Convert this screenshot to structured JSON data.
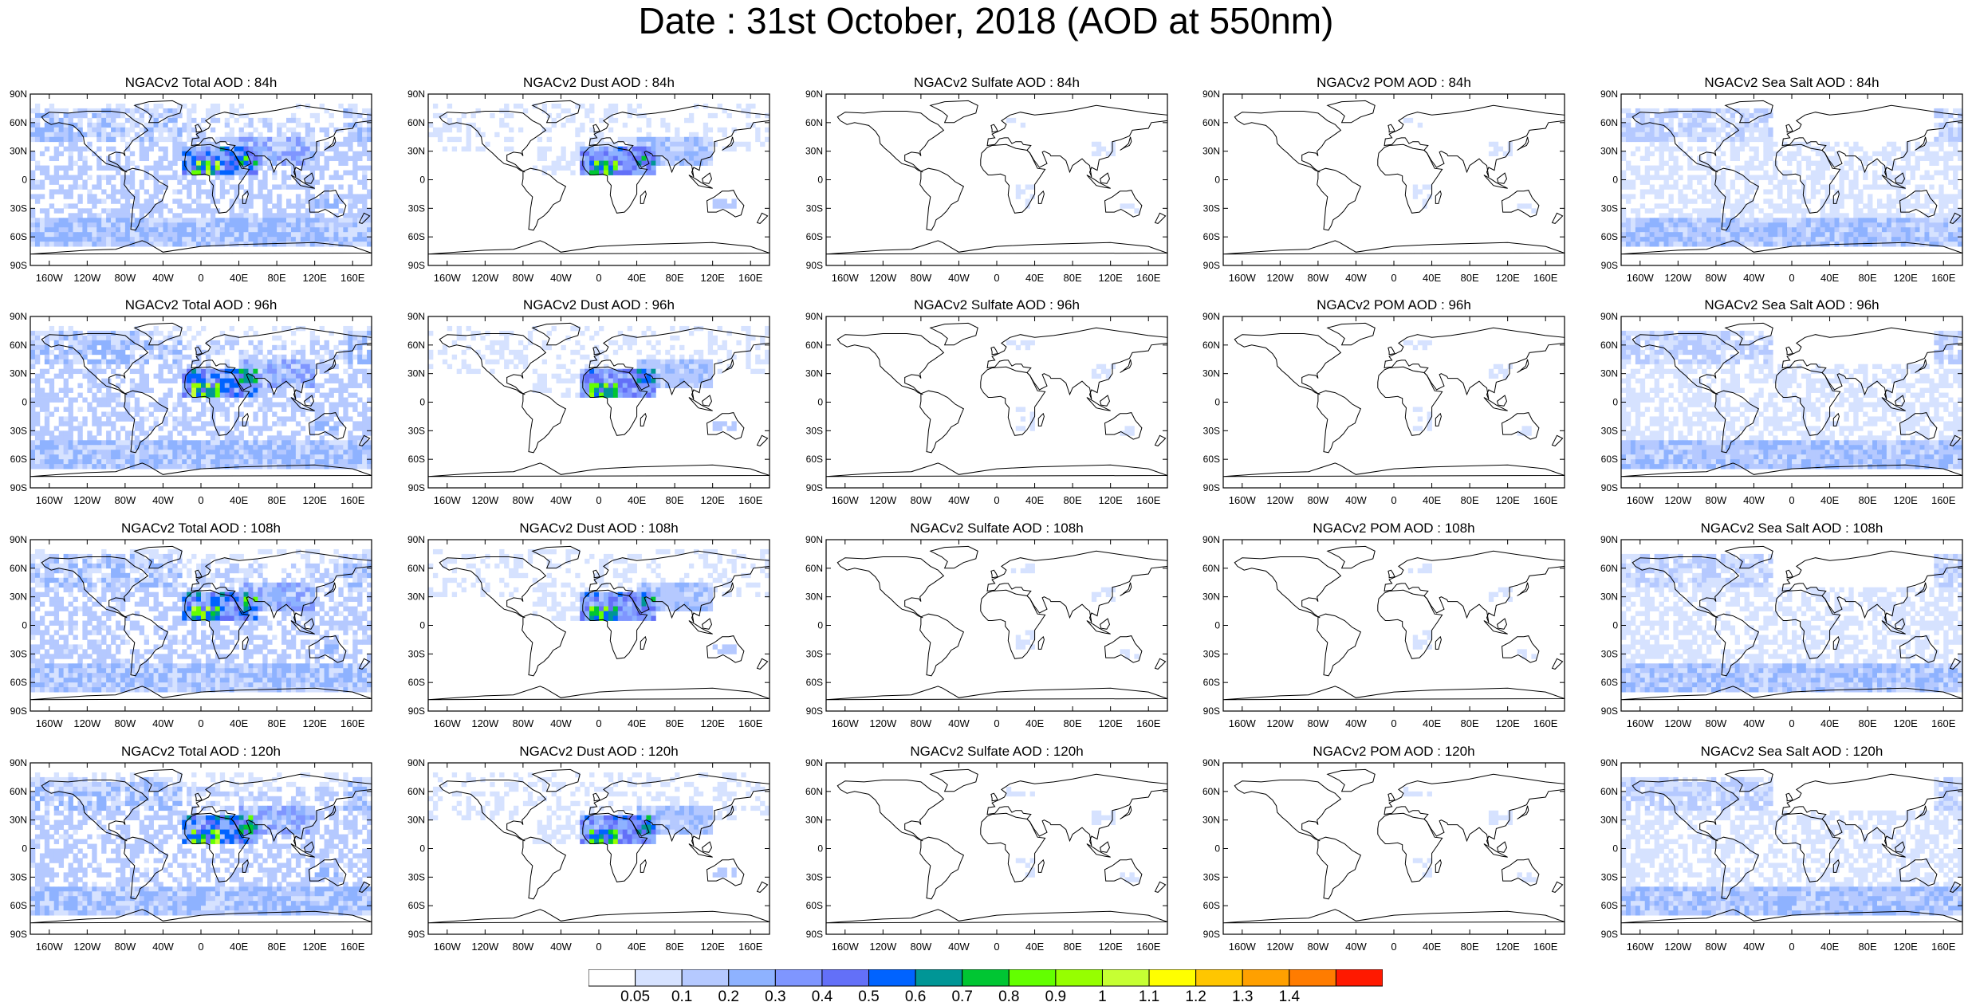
{
  "title": "Date : 31st October, 2018 (AOD at 550nm)",
  "lat_ticks": [
    "90N",
    "60N",
    "30N",
    "0",
    "30S",
    "60S",
    "90S"
  ],
  "lon_ticks": [
    "160W",
    "120W",
    "80W",
    "40W",
    "0",
    "40E",
    "80E",
    "120E",
    "160E"
  ],
  "rows": [
    {
      "hour": "84h",
      "titles": [
        "NGACv2 Total AOD : 84h",
        "NGACv2 Dust AOD : 84h",
        "NGACv2 Sulfate AOD : 84h",
        "NGACv2 POM AOD : 84h",
        "NGACv2 Sea Salt AOD : 84h"
      ]
    },
    {
      "hour": "96h",
      "titles": [
        "NGACv2 Total AOD : 96h",
        "NGACv2 Dust AOD : 96h",
        "NGACv2 Sulfate AOD : 96h",
        "NGACv2 POM AOD : 96h",
        "NGACv2 Sea Salt AOD : 96h"
      ]
    },
    {
      "hour": "108h",
      "titles": [
        "NGACv2 Total AOD : 108h",
        "NGACv2 Dust AOD : 108h",
        "NGACv2 Sulfate AOD : 108h",
        "NGACv2 POM AOD : 108h",
        "NGACv2 Sea Salt AOD : 108h"
      ]
    },
    {
      "hour": "120h",
      "titles": [
        "NGACv2 Total AOD : 120h",
        "NGACv2 Dust AOD : 120h",
        "NGACv2 Sulfate AOD : 120h",
        "NGACv2 POM AOD : 120h",
        "NGACv2 Sea Salt AOD : 120h"
      ]
    }
  ],
  "colorbar": {
    "labels": [
      "0.05",
      "0.1",
      "0.2",
      "0.3",
      "0.4",
      "0.5",
      "0.6",
      "0.7",
      "0.8",
      "0.9",
      "1",
      "1.1",
      "1.2",
      "1.3",
      "1.4"
    ],
    "colors": [
      "#ffffff",
      "#d6e2ff",
      "#b5c9ff",
      "#8eb2ff",
      "#7f96ff",
      "#6370f8",
      "#0063ff",
      "#009696",
      "#00c633",
      "#63ff00",
      "#96ff00",
      "#c6ff33",
      "#ffff00",
      "#ffc600",
      "#ffa000",
      "#ff7c00",
      "#ff1900"
    ]
  },
  "aerosol_types": [
    "Total",
    "Dust",
    "Sulfate",
    "POM",
    "Sea Salt"
  ]
}
